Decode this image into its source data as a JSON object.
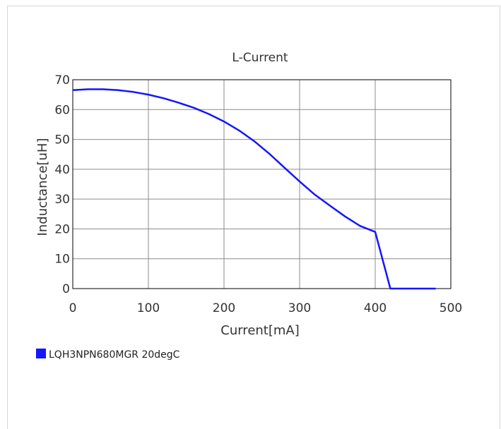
{
  "chart_data": {
    "type": "line",
    "title": "L-Current",
    "xlabel": "Current[mA]",
    "ylabel": "Inductance[uH]",
    "xlim": [
      0,
      500
    ],
    "ylim": [
      0,
      70
    ],
    "xticks": [
      0,
      100,
      200,
      300,
      400,
      500
    ],
    "yticks": [
      0,
      10,
      20,
      30,
      40,
      50,
      60,
      70
    ],
    "grid": true,
    "legend_position": "bottom-left",
    "series": [
      {
        "name": "LQH3NPN680MGR 20degC",
        "color": "#1515ff",
        "x": [
          0,
          20,
          40,
          60,
          80,
          100,
          120,
          140,
          160,
          180,
          200,
          220,
          240,
          260,
          280,
          300,
          320,
          340,
          360,
          380,
          400,
          420,
          440,
          460,
          480
        ],
        "y": [
          66.5,
          66.8,
          66.8,
          66.5,
          65.9,
          65.0,
          63.8,
          62.3,
          60.6,
          58.5,
          56.0,
          53.0,
          49.4,
          45.2,
          40.5,
          35.9,
          31.5,
          27.8,
          24.2,
          21.0,
          19.0,
          0,
          0,
          0,
          0
        ]
      }
    ]
  }
}
